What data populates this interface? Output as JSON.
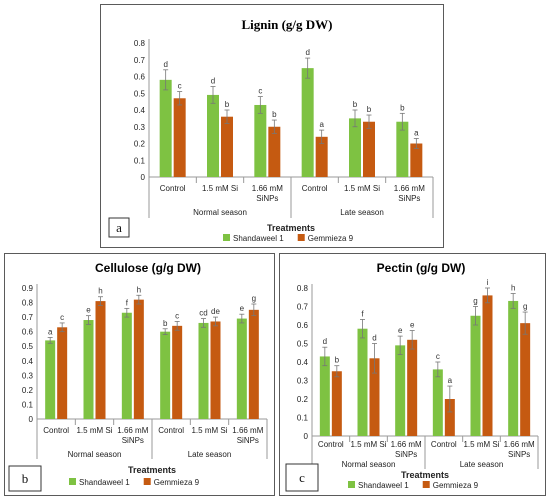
{
  "chart_data": [
    {
      "type": "bar",
      "panel_label": "a",
      "title": "Lignin (g/g DW)",
      "xlabel": "Treatments",
      "ylim": [
        0,
        0.8
      ],
      "ytick_step": 0.1,
      "ytick_decimals": 1,
      "categories": [
        "Control",
        "1.5 mM Si",
        "1.66 mM SiNPs",
        "Control",
        "1.5 mM Si",
        "1.66 mM SiNPs"
      ],
      "groups": [
        "Normal season",
        "Late season"
      ],
      "legend_position": "bottom",
      "series": [
        {
          "name": "Shandaweel 1",
          "color": "#7ec242",
          "values": [
            0.58,
            0.49,
            0.43,
            0.65,
            0.35,
            0.33
          ],
          "errors": [
            0.06,
            0.05,
            0.05,
            0.06,
            0.05,
            0.05
          ],
          "letters": [
            "d",
            "d",
            "c",
            "d",
            "b",
            "b"
          ]
        },
        {
          "name": "Gemmieza 9",
          "color": "#c55a11",
          "values": [
            0.47,
            0.36,
            0.3,
            0.24,
            0.33,
            0.2
          ],
          "errors": [
            0.04,
            0.04,
            0.04,
            0.04,
            0.04,
            0.03
          ],
          "letters": [
            "c",
            "b",
            "b",
            "a",
            "b",
            "a"
          ]
        }
      ]
    },
    {
      "type": "bar",
      "panel_label": "b",
      "title": "Cellulose (g/g DW)",
      "xlabel": "Treatments",
      "ylim": [
        0,
        0.9
      ],
      "ytick_step": 0.1,
      "ytick_decimals": 1,
      "categories": [
        "Control",
        "1.5 mM Si",
        "1.66 mM SiNPs",
        "Control",
        "1.5 mM Si",
        "1.66 mM SiNPs"
      ],
      "groups": [
        "Normal season",
        "Late season"
      ],
      "legend_position": "bottom",
      "series": [
        {
          "name": "Shandaweel 1",
          "color": "#7ec242",
          "values": [
            0.54,
            0.68,
            0.73,
            0.6,
            0.66,
            0.69
          ],
          "errors": [
            0.02,
            0.03,
            0.03,
            0.02,
            0.03,
            0.03
          ],
          "letters": [
            "a",
            "e",
            "f",
            "b",
            "cd",
            "e"
          ]
        },
        {
          "name": "Gemmieza 9",
          "color": "#c55a11",
          "values": [
            0.63,
            0.81,
            0.82,
            0.64,
            0.67,
            0.75
          ],
          "errors": [
            0.03,
            0.03,
            0.03,
            0.03,
            0.03,
            0.04
          ],
          "letters": [
            "c",
            "h",
            "h",
            "c",
            "de",
            "g"
          ]
        }
      ]
    },
    {
      "type": "bar",
      "panel_label": "c",
      "title": "Pectin (g/g DW)",
      "xlabel": "Treatments",
      "ylim": [
        0,
        0.8
      ],
      "ytick_step": 0.1,
      "ytick_decimals": 1,
      "categories": [
        "Control",
        "1.5 mM Si",
        "1.66 mM SiNPs",
        "Control",
        "1.5 mM Si",
        "1.66 mM SiNPs"
      ],
      "groups": [
        "Normal season",
        "Late season"
      ],
      "legend_position": "bottom",
      "series": [
        {
          "name": "Shandaweel 1",
          "color": "#7ec242",
          "values": [
            0.43,
            0.58,
            0.49,
            0.36,
            0.65,
            0.73
          ],
          "errors": [
            0.05,
            0.05,
            0.05,
            0.04,
            0.05,
            0.04
          ],
          "letters": [
            "d",
            "f",
            "e",
            "c",
            "g",
            "h"
          ]
        },
        {
          "name": "Gemmieza 9",
          "color": "#c55a11",
          "values": [
            0.35,
            0.42,
            0.52,
            0.2,
            0.76,
            0.61
          ],
          "errors": [
            0.03,
            0.08,
            0.05,
            0.07,
            0.04,
            0.06
          ],
          "letters": [
            "b",
            "d",
            "e",
            "a",
            "i",
            "g"
          ]
        }
      ]
    }
  ]
}
